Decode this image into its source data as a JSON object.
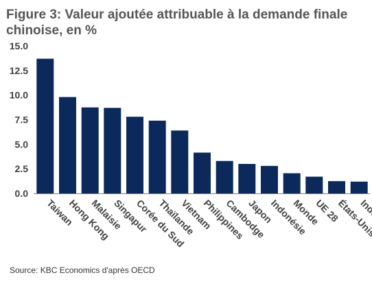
{
  "title": "Figure 3: Valeur ajoutée attribuable à la demande finale chinoise, en %",
  "source": "Source: KBC Economics d'après OECD",
  "colors": {
    "bar": "#0b2a5b",
    "axis": "#7f7f7f",
    "text": "#404040"
  },
  "chart_data": {
    "type": "bar",
    "categories": [
      "Taiwan",
      "Hong Kong",
      "Malaisie",
      "Singapur",
      "Corée du Sud",
      "Thaïlande",
      "Vietnam",
      "Philippines",
      "Cambodge",
      "Japon",
      "Indonésie",
      "Monde",
      "UE 28",
      "États-Unis",
      "Inde"
    ],
    "values": [
      13.7,
      9.8,
      8.75,
      8.7,
      7.8,
      7.4,
      6.4,
      4.15,
      3.3,
      3.0,
      2.8,
      2.05,
      1.7,
      1.25,
      1.2
    ],
    "yticks": [
      "0.0",
      "2.5",
      "5.0",
      "7.5",
      "10.0",
      "12.5",
      "15.0"
    ],
    "ylim": [
      0,
      15
    ],
    "grid": false,
    "xlabel": "",
    "ylabel": ""
  }
}
